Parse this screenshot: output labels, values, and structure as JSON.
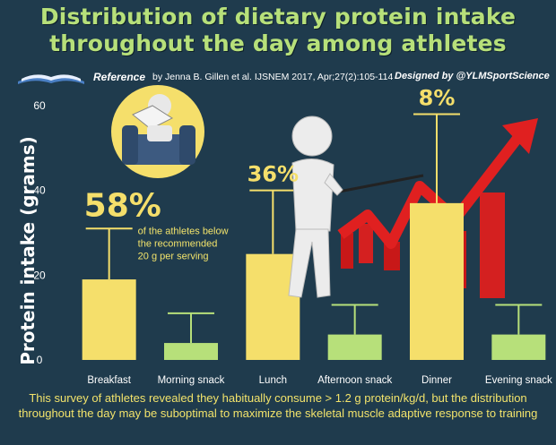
{
  "title_line1": "Distribution of dietary protein intake",
  "title_line2": "throughout the day among athletes",
  "reference": {
    "label": "Reference",
    "text": "by Jenna B. Gillen et al. IJSNEM 2017, Apr;27(2):105-114",
    "credit": "Designed by @YLMSportScience",
    "icon": "open-book-icon"
  },
  "colors": {
    "background": "#1f3b4d",
    "main_meal": "#f5df6b",
    "snack": "#b7e07a",
    "title": "#b7e07a",
    "annotation": "#f2e36b",
    "arrow": "#e02020"
  },
  "chart_data": {
    "type": "bar",
    "ylabel": "Protein intake (grams)",
    "ylim": [
      0,
      60
    ],
    "yticks": [
      "0",
      "20",
      "40",
      "60"
    ],
    "categories": [
      "Breakfast",
      "Morning snack",
      "Lunch",
      "Afternoon snack",
      "Dinner",
      "Evening snack"
    ],
    "values": [
      19,
      4,
      25,
      6,
      37,
      6
    ],
    "error_upper": [
      31,
      11,
      40,
      13,
      58,
      13
    ],
    "bar_kind": [
      "meal",
      "snack",
      "meal",
      "snack",
      "meal",
      "snack"
    ],
    "annotations": [
      {
        "category": "Breakfast",
        "percent": "58%",
        "note": [
          "of the athletes below",
          "the recommended",
          "20 g per serving"
        ]
      },
      {
        "category": "Lunch",
        "percent": "36%"
      },
      {
        "category": "Dinner",
        "percent": "8%"
      }
    ],
    "grid": false
  },
  "illustrations": [
    "person-reading-newspaper-icon",
    "presenter-with-pointer-icon",
    "rising-arrow-chart-icon"
  ],
  "footer": "This survey of athletes revealed they habitually consume > 1.2 g protein/kg/d, but the distribution throughout the day may be suboptimal to maximize the skeletal muscle adaptive response to training"
}
